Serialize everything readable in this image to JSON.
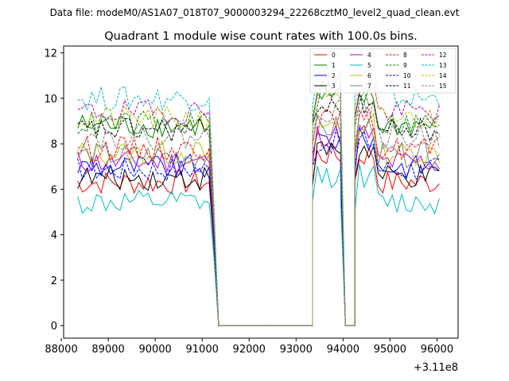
{
  "figure": {
    "suptitle": "Data file: modeM0/AS1A07_018T07_9000003294_22268cztM0_level2_quad_clean.evt",
    "title": "Quadrant 1 module wise count rates with 100.0s bins.",
    "offset_label": "+3.11e8"
  },
  "chart_data": {
    "type": "line",
    "title": "Quadrant 1 module wise count rates with 100.0s bins.",
    "xlabel": "",
    "ylabel": "",
    "x_offset": 311000000,
    "xlim": [
      88050,
      96450
    ],
    "ylim": [
      -0.55,
      12.3
    ],
    "xticks": [
      88000,
      89000,
      90000,
      91000,
      92000,
      93000,
      94000,
      95000,
      96000
    ],
    "yticks": [
      0,
      2,
      4,
      6,
      8,
      10,
      12
    ],
    "grid": false,
    "legend_position": "top-right",
    "segments": [
      {
        "start": 88350,
        "end": 91050,
        "level": "high"
      },
      {
        "start": 91150,
        "end": 91350,
        "level": "drop"
      },
      {
        "start": 91350,
        "end": 93350,
        "level": "zero"
      },
      {
        "start": 93350,
        "end": 93950,
        "level": "high"
      },
      {
        "start": 93950,
        "end": 94050,
        "level": "drop"
      },
      {
        "start": 94050,
        "end": 94250,
        "level": "zero"
      },
      {
        "start": 94250,
        "end": 96050,
        "level": "high"
      }
    ],
    "series": [
      {
        "name": "0",
        "color": "#ff0000",
        "dash": "solid",
        "base": 6.3
      },
      {
        "name": "1",
        "color": "#008000",
        "dash": "solid",
        "base": 8.8
      },
      {
        "name": "2",
        "color": "#0000ff",
        "dash": "solid",
        "base": 7.0
      },
      {
        "name": "3",
        "color": "#000000",
        "dash": "solid",
        "base": 6.5
      },
      {
        "name": "4",
        "color": "#bf00bf",
        "dash": "solid",
        "base": 7.2
      },
      {
        "name": "5",
        "color": "#00bfbf",
        "dash": "solid",
        "base": 5.4
      },
      {
        "name": "6",
        "color": "#bfbf00",
        "dash": "solid",
        "base": 7.6
      },
      {
        "name": "7",
        "color": "#808080",
        "dash": "solid",
        "base": 7.5
      },
      {
        "name": "8",
        "color": "#ff0000",
        "dash": "dashed",
        "base": 7.8
      },
      {
        "name": "9",
        "color": "#008000",
        "dash": "dashed",
        "base": 8.9
      },
      {
        "name": "10",
        "color": "#0000ff",
        "dash": "dashed",
        "base": 6.9
      },
      {
        "name": "11",
        "color": "#000000",
        "dash": "dashed",
        "base": 8.6
      },
      {
        "name": "12",
        "color": "#bf00bf",
        "dash": "dashed",
        "base": 9.4
      },
      {
        "name": "13",
        "color": "#00bfbf",
        "dash": "dashed",
        "base": 10.0
      },
      {
        "name": "14",
        "color": "#bfbf00",
        "dash": "dashed",
        "base": 9.1
      },
      {
        "name": "15",
        "color": "#808080",
        "dash": "dashed",
        "base": 8.3
      }
    ]
  }
}
